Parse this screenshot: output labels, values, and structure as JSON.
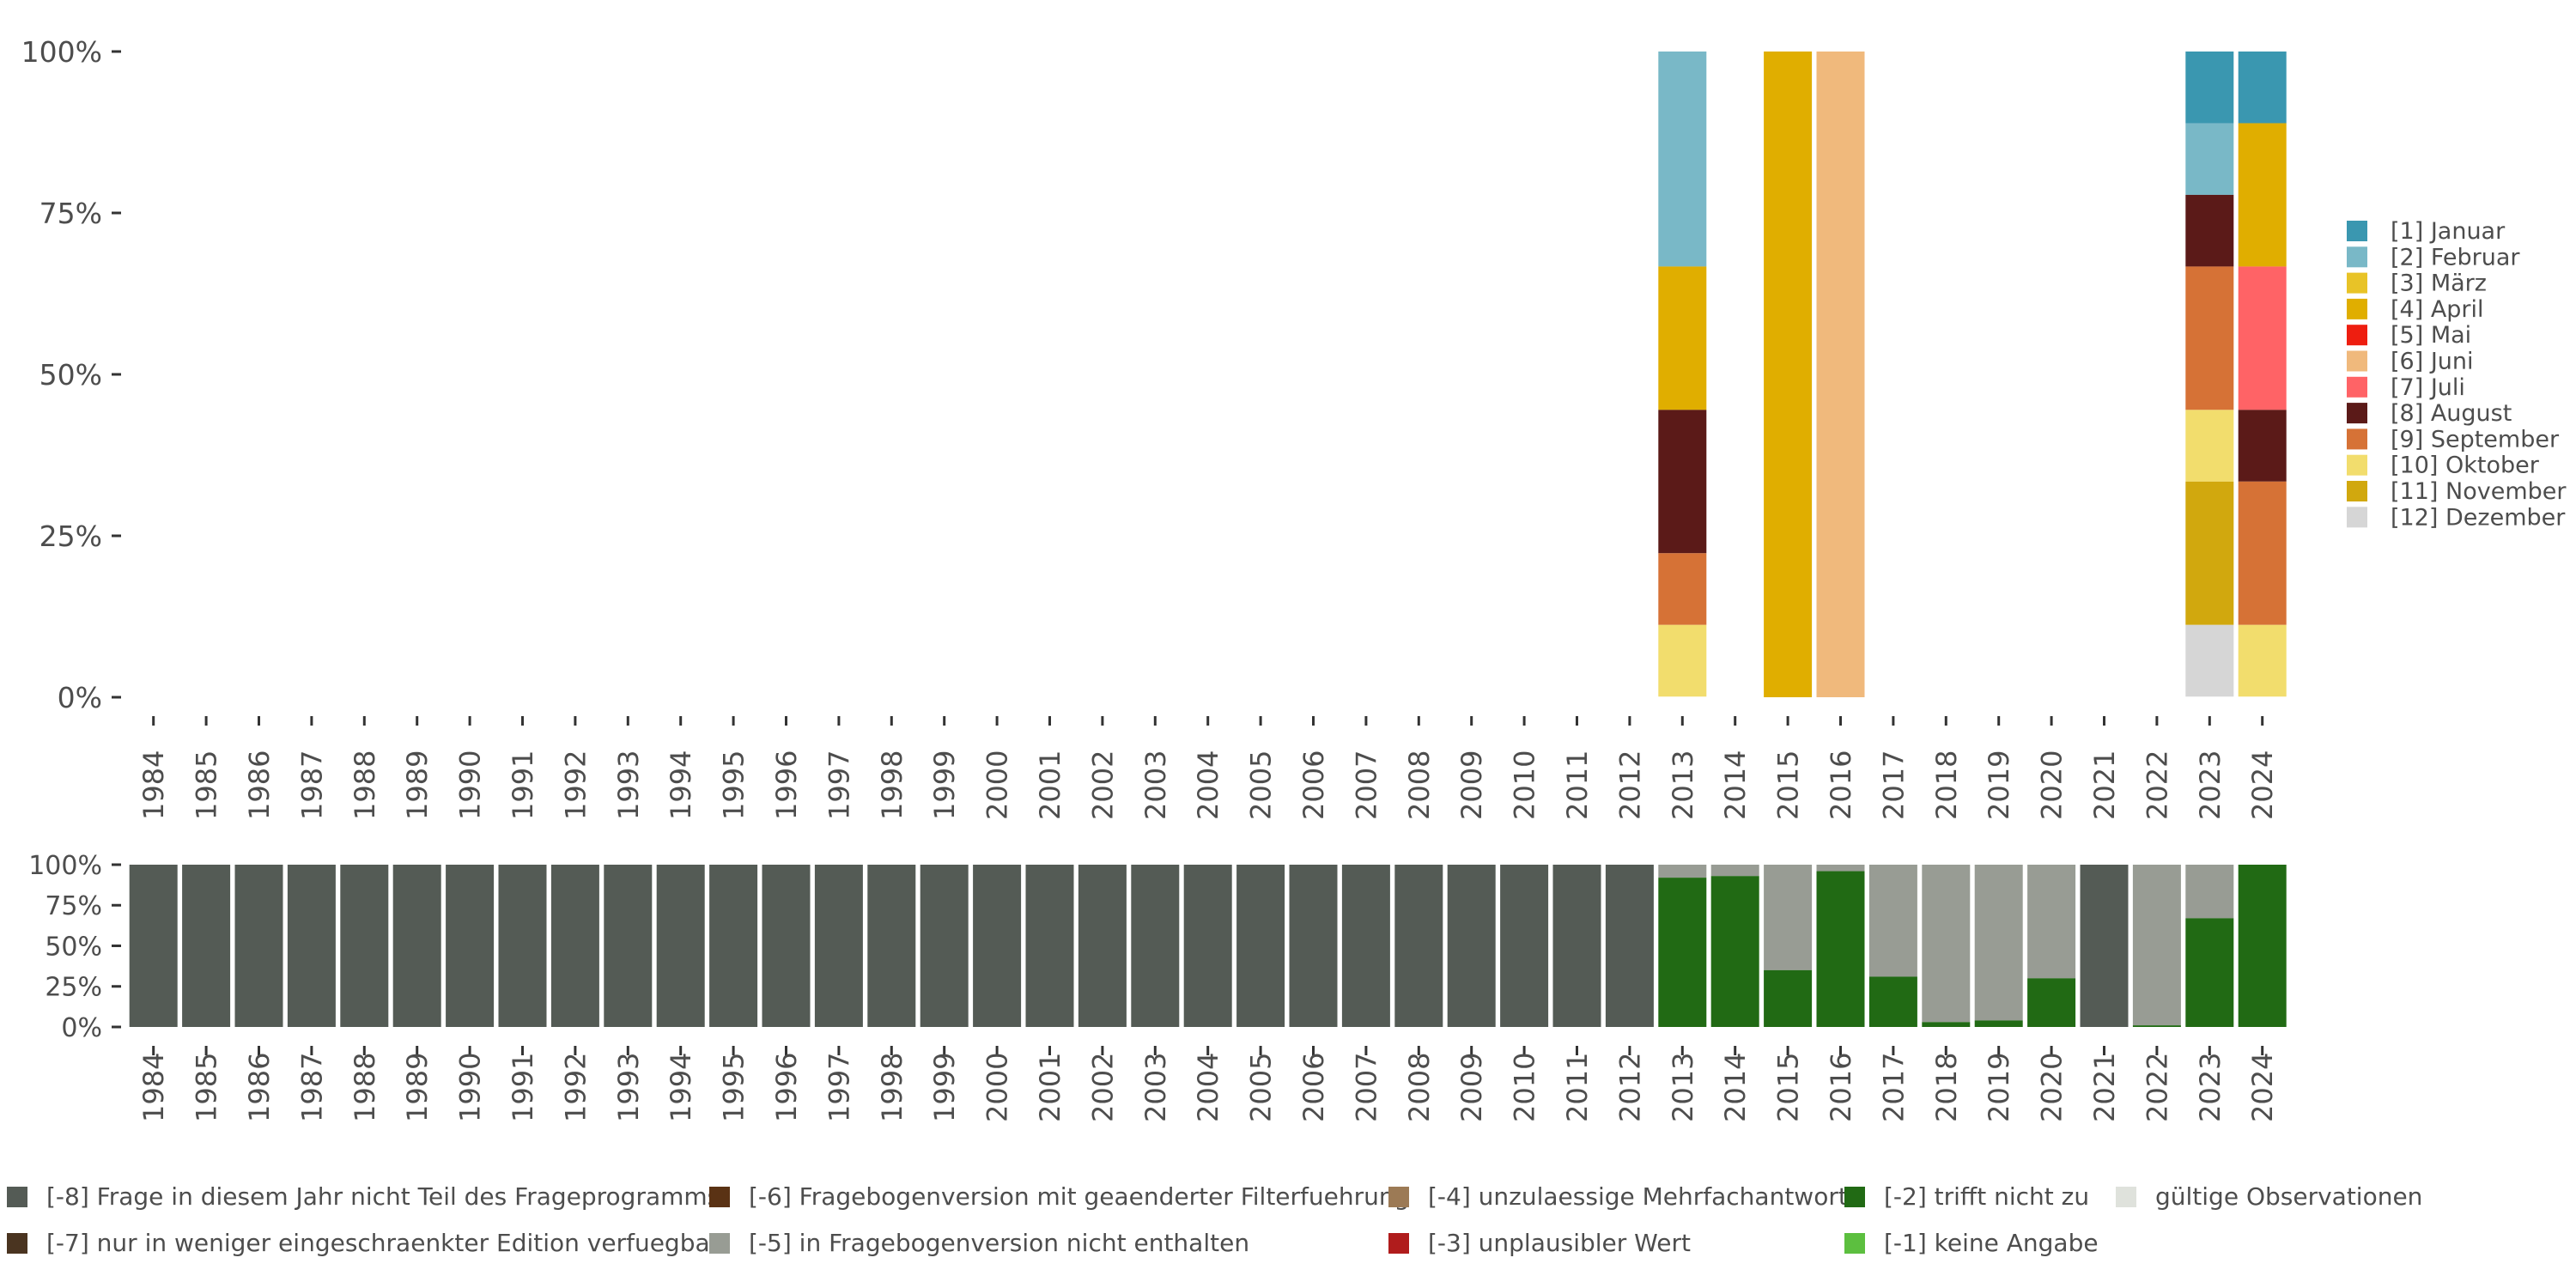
{
  "chart_data": [
    {
      "type": "bar",
      "stacked": true,
      "percent": true,
      "categories": [
        "1984",
        "1985",
        "1986",
        "1987",
        "1988",
        "1989",
        "1990",
        "1991",
        "1992",
        "1993",
        "1994",
        "1995",
        "1996",
        "1997",
        "1998",
        "1999",
        "2000",
        "2001",
        "2002",
        "2003",
        "2004",
        "2005",
        "2006",
        "2007",
        "2008",
        "2009",
        "2010",
        "2011",
        "2012",
        "2013",
        "2014",
        "2015",
        "2016",
        "2017",
        "2018",
        "2019",
        "2020",
        "2021",
        "2022",
        "2023",
        "2024"
      ],
      "ylim": [
        0,
        100
      ],
      "yticks": [
        "0%",
        "25%",
        "50%",
        "75%",
        "100%"
      ],
      "legend_position": "right",
      "series": [
        {
          "name": "[1] Januar",
          "color": "#3a97b0",
          "values": {
            "2023": 11.1,
            "2024": 11.1
          }
        },
        {
          "name": "[2] Februar",
          "color": "#79b8c7",
          "values": {
            "2013": 33.3,
            "2023": 11.1
          }
        },
        {
          "name": "[3] März",
          "color": "#e8c327",
          "values": {}
        },
        {
          "name": "[4] April",
          "color": "#e0ae00",
          "values": {
            "2013": 22.2,
            "2015": 100,
            "2024": 22.2
          }
        },
        {
          "name": "[5] Mai",
          "color": "#ee1e10",
          "values": {}
        },
        {
          "name": "[6] Juni",
          "color": "#f0b97c",
          "values": {
            "2016": 100
          }
        },
        {
          "name": "[7] Juli",
          "color": "#ff6366",
          "values": {
            "2024": 22.2
          }
        },
        {
          "name": "[8] August",
          "color": "#5b1a18",
          "values": {
            "2013": 22.2,
            "2023": 11.1,
            "2024": 11.1
          }
        },
        {
          "name": "[9] September",
          "color": "#d67236",
          "values": {
            "2013": 11.1,
            "2023": 22.2,
            "2024": 22.2
          }
        },
        {
          "name": "[10] Oktober",
          "color": "#f2dd6d",
          "values": {
            "2013": 11.1,
            "2023": 11.1,
            "2024": 11.1
          }
        },
        {
          "name": "[11] November",
          "color": "#d1a80e",
          "values": {
            "2023": 22.2
          }
        },
        {
          "name": "[12] Dezember",
          "color": "#d6d6d6",
          "values": {
            "2023": 11.1
          }
        }
      ]
    },
    {
      "type": "bar",
      "stacked": true,
      "percent": true,
      "categories": [
        "1984",
        "1985",
        "1986",
        "1987",
        "1988",
        "1989",
        "1990",
        "1991",
        "1992",
        "1993",
        "1994",
        "1995",
        "1996",
        "1997",
        "1998",
        "1999",
        "2000",
        "2001",
        "2002",
        "2003",
        "2004",
        "2005",
        "2006",
        "2007",
        "2008",
        "2009",
        "2010",
        "2011",
        "2012",
        "2013",
        "2014",
        "2015",
        "2016",
        "2017",
        "2018",
        "2019",
        "2020",
        "2021",
        "2022",
        "2023",
        "2024"
      ],
      "ylim": [
        0,
        100
      ],
      "yticks": [
        "0%",
        "25%",
        "50%",
        "75%",
        "100%"
      ],
      "legend_position": "bottom",
      "series": [
        {
          "name": "[-8] Frage in diesem Jahr nicht Teil des Frageprogramms",
          "color": "#545b55",
          "values": {
            "1984": 100,
            "1985": 100,
            "1986": 100,
            "1987": 100,
            "1988": 100,
            "1989": 100,
            "1990": 100,
            "1991": 100,
            "1992": 100,
            "1993": 100,
            "1994": 100,
            "1995": 100,
            "1996": 100,
            "1997": 100,
            "1998": 100,
            "1999": 100,
            "2000": 100,
            "2001": 100,
            "2002": 100,
            "2003": 100,
            "2004": 100,
            "2005": 100,
            "2006": 100,
            "2007": 100,
            "2008": 100,
            "2009": 100,
            "2010": 100,
            "2011": 100,
            "2012": 100,
            "2021": 100
          }
        },
        {
          "name": "[-7] nur in weniger eingeschraenkter Edition verfuegbar",
          "color": "#4a3420",
          "values": {}
        },
        {
          "name": "[-6] Fragebogenversion mit geaenderter Filterfuehrung",
          "color": "#5a3214",
          "values": {}
        },
        {
          "name": "[-5] in Fragebogenversion nicht enthalten",
          "color": "#989c94",
          "values": {
            "2013": 8,
            "2014": 7,
            "2015": 65,
            "2016": 4,
            "2017": 69,
            "2018": 97,
            "2019": 96,
            "2020": 70,
            "2022": 99,
            "2023": 33,
            "2024": 0
          }
        },
        {
          "name": "[-4] unzulaessige Mehrfachantwort",
          "color": "#9c7a55",
          "values": {}
        },
        {
          "name": "[-3] unplausibler Wert",
          "color": "#b01c1c",
          "values": {}
        },
        {
          "name": "[-2] trifft nicht zu",
          "color": "#216a14",
          "values": {
            "2013": 92,
            "2014": 93,
            "2015": 35,
            "2016": 96,
            "2017": 31,
            "2018": 3,
            "2019": 4,
            "2020": 30,
            "2022": 1,
            "2023": 67,
            "2024": 100
          }
        },
        {
          "name": "[-1] keine Angabe",
          "color": "#5cbf3f",
          "values": {}
        },
        {
          "name": "gültige Observationen",
          "color": "#dfe2dc",
          "values": {}
        }
      ]
    }
  ]
}
